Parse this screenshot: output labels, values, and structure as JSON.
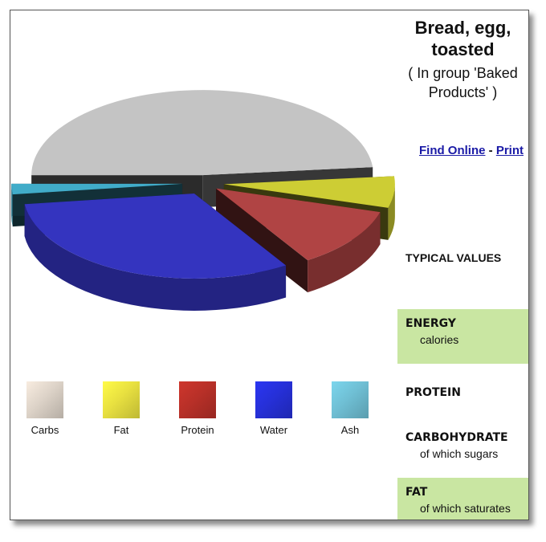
{
  "food": {
    "title": "Bread, egg, toasted",
    "group_line": "( In group 'Baked Products' )"
  },
  "links": {
    "find_online": "Find Online",
    "separator": "-",
    "print": "Print"
  },
  "typical_values": "TYPICAL VALUES",
  "nutrients": [
    {
      "label": "ENERGY",
      "sub": "calories"
    },
    {
      "label": "PROTEIN",
      "sub": ""
    },
    {
      "label": "CARBOHYDRATE",
      "sub": "of which sugars"
    },
    {
      "label": "FAT",
      "sub": "of which saturates"
    }
  ],
  "chart_data": {
    "type": "pie",
    "title": "",
    "style": "3d-exploded",
    "categories": [
      "Carbs",
      "Fat",
      "Protein",
      "Water",
      "Ash"
    ],
    "values": [
      48.5,
      6.0,
      11.5,
      32.0,
      2.0
    ],
    "colors": [
      "#c4c4c4",
      "#cdcd34",
      "#b04444",
      "#3434bf",
      "#41acc9"
    ],
    "legend": {
      "placement": "bottom",
      "labels": [
        "Carbs",
        "Fat",
        "Protein",
        "Water",
        "Ash"
      ],
      "swatch_colors": [
        "#ddd3c8",
        "#e8e040",
        "#b83028",
        "#2630d8",
        "#6fbfd4"
      ]
    }
  }
}
